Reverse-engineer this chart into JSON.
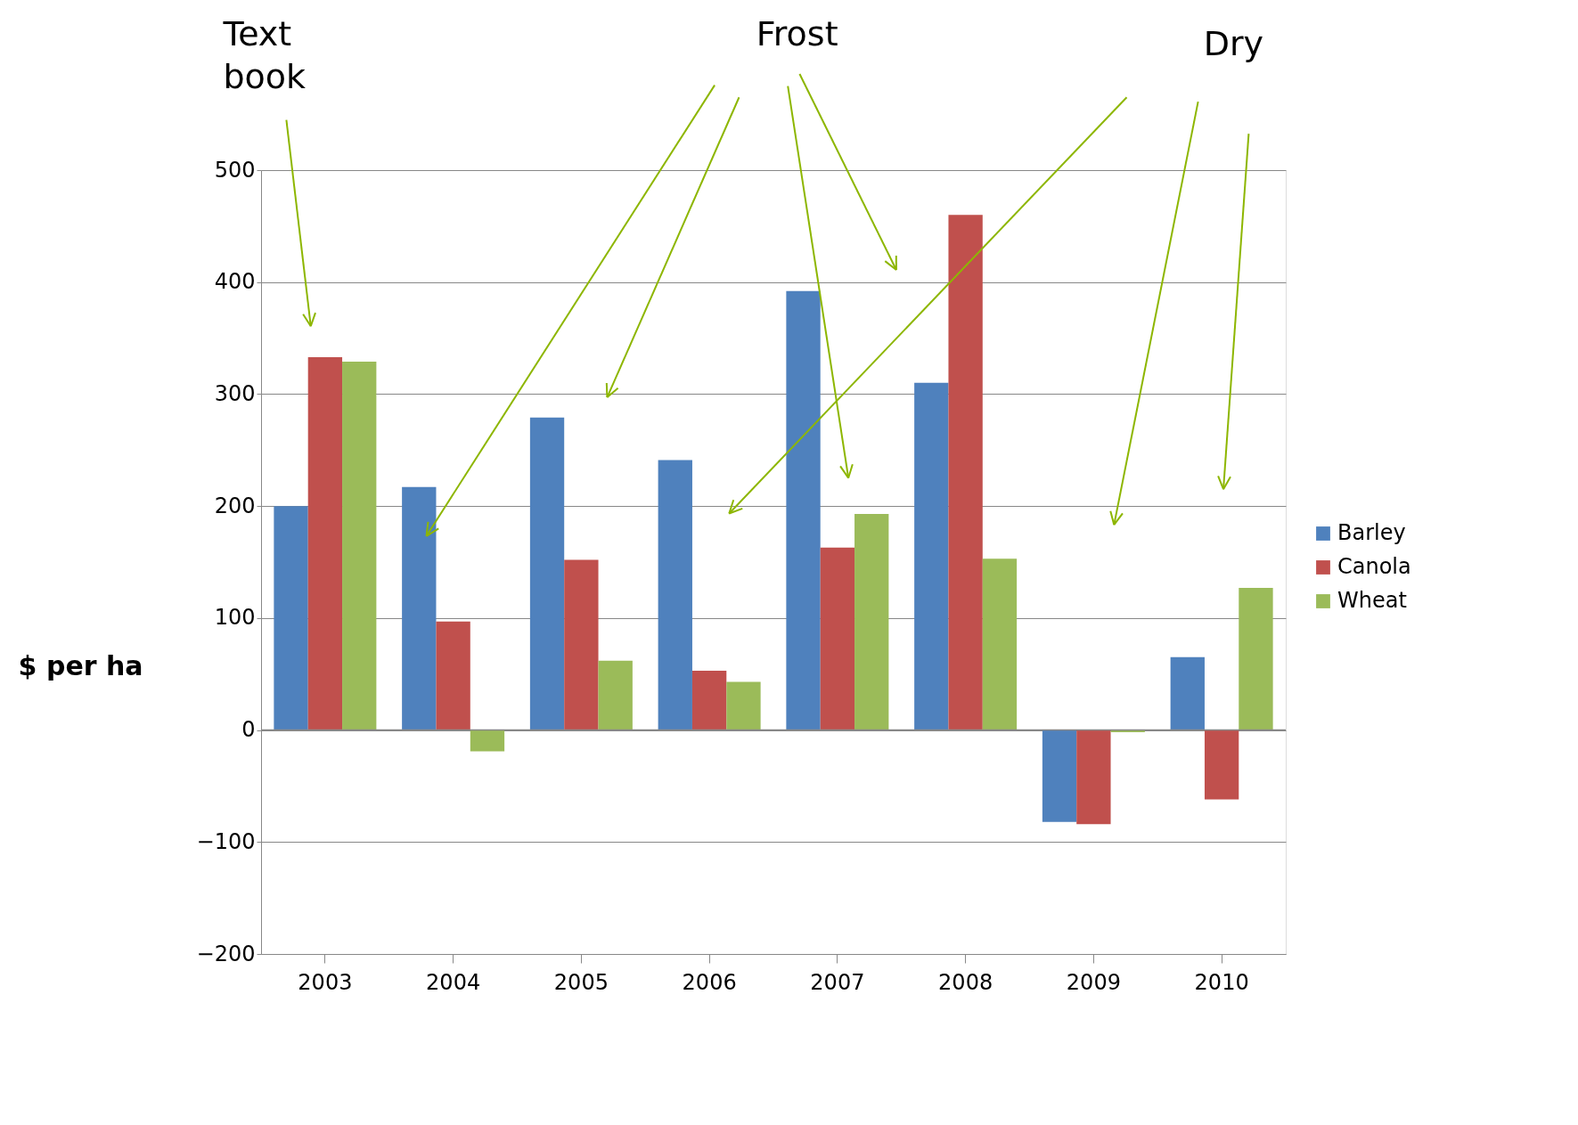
{
  "chart_data": {
    "type": "bar",
    "ylabel": "$ per ha",
    "categories": [
      "2003",
      "2004",
      "2005",
      "2006",
      "2007",
      "2008",
      "2009",
      "2010"
    ],
    "series": [
      {
        "name": "Barley",
        "color": "#4f81bd",
        "values": [
          200,
          217,
          279,
          241,
          392,
          310,
          -82,
          65
        ]
      },
      {
        "name": "Canola",
        "color": "#c0504d",
        "values": [
          333,
          97,
          152,
          53,
          163,
          460,
          -84,
          -62
        ]
      },
      {
        "name": "Wheat",
        "color": "#9bbb59",
        "values": [
          329,
          -19,
          62,
          43,
          193,
          153,
          -2,
          127
        ]
      }
    ],
    "ylim": [
      -200,
      500
    ],
    "yticks": [
      -200,
      -100,
      0,
      100,
      200,
      300,
      400,
      500
    ],
    "grid": "y",
    "legend": "right",
    "annotations": [
      "Text book",
      "Frost",
      "Dry"
    ]
  }
}
